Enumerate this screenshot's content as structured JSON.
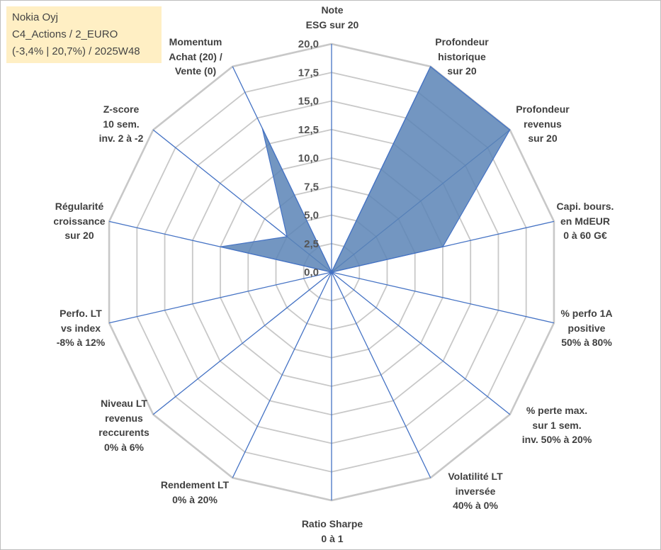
{
  "header": {
    "line1": "Nokia Oyj",
    "line2": "C4_Actions / 2_EURO",
    "line3": "(-3,4% | 20,7%) / 2025W48"
  },
  "colors": {
    "area_fill": "#5b84b6",
    "area_stroke": "#4472c4",
    "grid": "#c8c8c8",
    "spoke": "#4472c4",
    "info_bg": "#ffefc4"
  },
  "chart_data": {
    "type": "radar",
    "title": "",
    "rmin": 0,
    "rmax": 20,
    "tick_step": 2.5,
    "tick_labels": [
      "0,0",
      "2,5",
      "5,0",
      "7,5",
      "10,0",
      "12,5",
      "15,0",
      "17,5",
      "20,0"
    ],
    "axes": [
      {
        "lines": [
          "Note",
          "ESG sur 20"
        ],
        "value": 0
      },
      {
        "lines": [
          "Profondeur",
          "historique",
          "sur 20"
        ],
        "value": 20
      },
      {
        "lines": [
          "Profondeur",
          "revenus",
          "sur 20"
        ],
        "value": 20
      },
      {
        "lines": [
          "Capi. bours.",
          "en MdEUR",
          "0 à 60 G€"
        ],
        "value": 10
      },
      {
        "lines": [
          "% perfo 1A",
          "positive",
          "50% à 80%"
        ],
        "value": 0
      },
      {
        "lines": [
          "% perte max.",
          "sur 1 sem.",
          "inv. 50% à 20%"
        ],
        "value": 0
      },
      {
        "lines": [
          "Volatilité LT",
          "inversée",
          "40% à 0%"
        ],
        "value": 0
      },
      {
        "lines": [
          "Ratio Sharpe",
          "0 à 1"
        ],
        "value": 0
      },
      {
        "lines": [
          "Rendement LT",
          "0% à 20%"
        ],
        "value": 0
      },
      {
        "lines": [
          "Niveau LT",
          "revenus",
          "reccurents",
          "0% à 6%"
        ],
        "value": 0
      },
      {
        "lines": [
          "Perfo. LT",
          "vs index",
          "-8% à 12%"
        ],
        "value": 0
      },
      {
        "lines": [
          "Régularité",
          "croissance",
          "sur 20"
        ],
        "value": 10
      },
      {
        "lines": [
          "Z-score",
          "10 sem.",
          "inv. 2 à -2"
        ],
        "value": 5
      },
      {
        "lines": [
          "Momentum",
          "Achat (20) /",
          "Vente (0)"
        ],
        "value": 14
      }
    ]
  }
}
